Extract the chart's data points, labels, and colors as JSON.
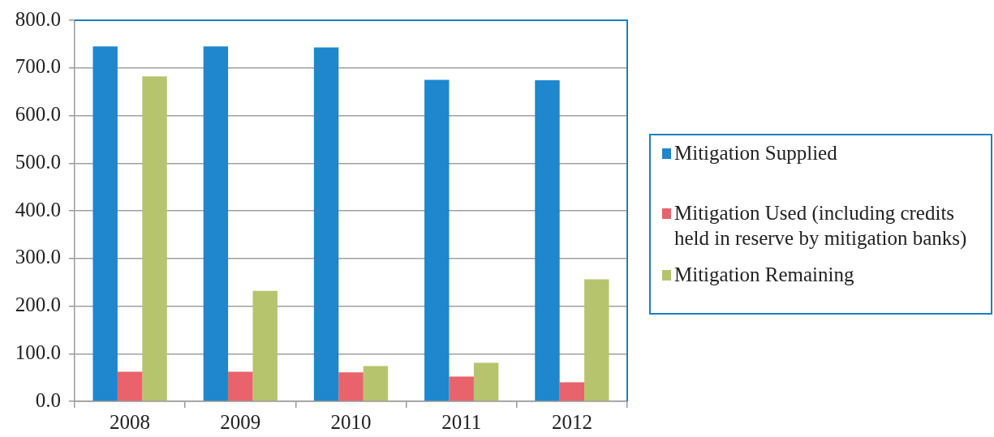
{
  "chart_data": {
    "type": "bar",
    "categories": [
      "2008",
      "2009",
      "2010",
      "2011",
      "2012"
    ],
    "series": [
      {
        "name": "Mitigation Supplied",
        "color": "#1e87cd",
        "values": [
          745,
          745,
          743,
          675,
          674
        ]
      },
      {
        "name": "Mitigation Used (including credits held in reserve by mitigation banks)",
        "color": "#e8636b",
        "values": [
          62,
          62,
          61,
          52,
          40
        ]
      },
      {
        "name": "Mitigation Remaining",
        "color": "#b7c46e",
        "values": [
          682,
          232,
          74,
          81,
          256
        ]
      }
    ],
    "ylim": [
      0,
      800
    ],
    "yticks": [
      {
        "value": 0,
        "label": "0.0"
      },
      {
        "value": 100,
        "label": "100.0"
      },
      {
        "value": 200,
        "label": "200.0"
      },
      {
        "value": 300,
        "label": "300.0"
      },
      {
        "value": 400,
        "label": "400.0"
      },
      {
        "value": 500,
        "label": "500.0"
      },
      {
        "value": 600,
        "label": "600.0"
      },
      {
        "value": 700,
        "label": "700.0"
      },
      {
        "value": 800,
        "label": "800.0"
      }
    ],
    "grid": "y",
    "legend": "right"
  }
}
